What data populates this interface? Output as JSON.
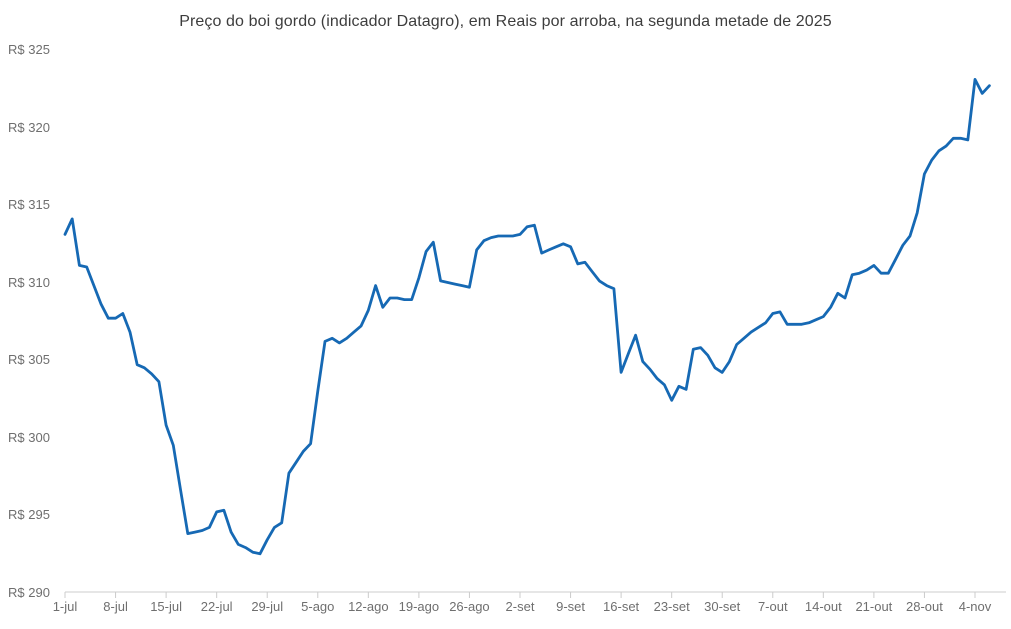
{
  "chart_data": {
    "type": "line",
    "title": "Preço do boi gordo (indicador Datagro), em Reais por arroba, na segunda metade de 2025",
    "currency_prefix": "R$",
    "ylabel": "",
    "xlabel": "",
    "ylim": [
      290,
      325
    ],
    "grid": "off",
    "legend": "none",
    "y_tick_values": [
      325,
      320,
      315,
      310,
      305,
      300,
      295,
      290
    ],
    "y_tick_labels": [
      "R$ 325",
      "R$ 320",
      "R$ 315",
      "R$ 310",
      "R$ 305",
      "R$ 300",
      "R$ 295",
      "R$ 290"
    ],
    "x_tick_labels": [
      "1-jul",
      "8-jul",
      "15-jul",
      "22-jul",
      "29-jul",
      "5-ago",
      "12-ago",
      "19-ago",
      "26-ago",
      "2-set",
      "9-set",
      "16-set",
      "23-set",
      "30-set",
      "7-out",
      "14-out",
      "21-out",
      "28-out",
      "4-nov"
    ],
    "x_tick_day_index": [
      0,
      7,
      14,
      21,
      28,
      35,
      42,
      49,
      56,
      63,
      70,
      77,
      84,
      91,
      98,
      105,
      112,
      119,
      126
    ],
    "line_color": "#1669B4",
    "axis_color": "#CCCCCC",
    "tick_label_color": "#6F6F6F",
    "title_color": "#3D3D3D",
    "background_color": "#FFFFFF",
    "series": [
      {
        "name": "Preço do boi gordo (R$/arroba)",
        "dates": [
          "1-jul",
          "2-jul",
          "3-jul",
          "4-jul",
          "5-jul",
          "6-jul",
          "7-jul",
          "8-jul",
          "9-jul",
          "10-jul",
          "11-jul",
          "12-jul",
          "13-jul",
          "14-jul",
          "15-jul",
          "16-jul",
          "17-jul",
          "18-jul",
          "19-jul",
          "20-jul",
          "21-jul",
          "22-jul",
          "23-jul",
          "24-jul",
          "25-jul",
          "26-jul",
          "27-jul",
          "28-jul",
          "29-jul",
          "30-jul",
          "31-jul",
          "1-ago",
          "2-ago",
          "3-ago",
          "4-ago",
          "5-ago",
          "6-ago",
          "7-ago",
          "8-ago",
          "9-ago",
          "10-ago",
          "11-ago",
          "12-ago",
          "13-ago",
          "14-ago",
          "15-ago",
          "16-ago",
          "17-ago",
          "18-ago",
          "19-ago",
          "20-ago",
          "21-ago",
          "22-ago",
          "23-ago",
          "24-ago",
          "25-ago",
          "26-ago",
          "27-ago",
          "28-ago",
          "29-ago",
          "30-ago",
          "31-ago",
          "1-set",
          "2-set",
          "3-set",
          "4-set",
          "5-set",
          "6-set",
          "7-set",
          "8-set",
          "9-set",
          "10-set",
          "11-set",
          "12-set",
          "13-set",
          "14-set",
          "15-set",
          "16-set",
          "17-set",
          "18-set",
          "19-set",
          "20-set",
          "21-set",
          "22-set",
          "23-set",
          "24-set",
          "25-set",
          "26-set",
          "27-set",
          "28-set",
          "29-set",
          "30-set",
          "1-out",
          "2-out",
          "3-out",
          "4-out",
          "5-out",
          "6-out",
          "7-out",
          "8-out",
          "9-out",
          "10-out",
          "11-out",
          "12-out",
          "13-out",
          "14-out",
          "15-out",
          "16-out",
          "17-out",
          "18-out",
          "19-out",
          "20-out",
          "21-out",
          "22-out",
          "23-out",
          "24-out",
          "25-out",
          "26-out",
          "27-out",
          "28-out",
          "29-out",
          "30-out",
          "31-out",
          "1-nov",
          "2-nov",
          "3-nov",
          "4-nov",
          "5-nov",
          "6-nov"
        ],
        "values": [
          313.1,
          314.1,
          311.1,
          311.0,
          309.8,
          308.6,
          307.7,
          307.7,
          308.0,
          306.8,
          304.7,
          304.5,
          304.1,
          303.6,
          300.8,
          299.5,
          296.6,
          293.8,
          293.9,
          294.0,
          294.2,
          295.2,
          295.3,
          293.9,
          293.1,
          292.9,
          292.6,
          292.5,
          293.4,
          294.2,
          294.5,
          297.7,
          298.4,
          299.1,
          299.6,
          303.0,
          306.2,
          306.4,
          306.1,
          306.4,
          306.8,
          307.2,
          308.2,
          309.8,
          308.4,
          309.0,
          309.0,
          308.9,
          308.9,
          310.3,
          312.0,
          312.6,
          310.1,
          310.0,
          309.9,
          309.8,
          309.7,
          312.1,
          312.7,
          312.9,
          313.0,
          313.0,
          313.0,
          313.1,
          313.6,
          313.7,
          311.9,
          312.1,
          312.3,
          312.5,
          312.3,
          311.2,
          311.3,
          310.7,
          310.1,
          309.8,
          309.6,
          304.2,
          305.4,
          306.6,
          304.9,
          304.4,
          303.8,
          303.4,
          302.4,
          303.3,
          303.1,
          305.7,
          305.8,
          305.3,
          304.5,
          304.2,
          304.9,
          306.0,
          306.4,
          306.8,
          307.1,
          307.4,
          308.0,
          308.1,
          307.3,
          307.3,
          307.3,
          307.4,
          307.6,
          307.8,
          308.4,
          309.3,
          309.0,
          310.5,
          310.6,
          310.8,
          311.1,
          310.6,
          310.6,
          311.5,
          312.4,
          313.0,
          314.5,
          317.0,
          317.9,
          318.5,
          318.8,
          319.3,
          319.3,
          319.2,
          323.1,
          322.2,
          322.7
        ]
      }
    ]
  }
}
